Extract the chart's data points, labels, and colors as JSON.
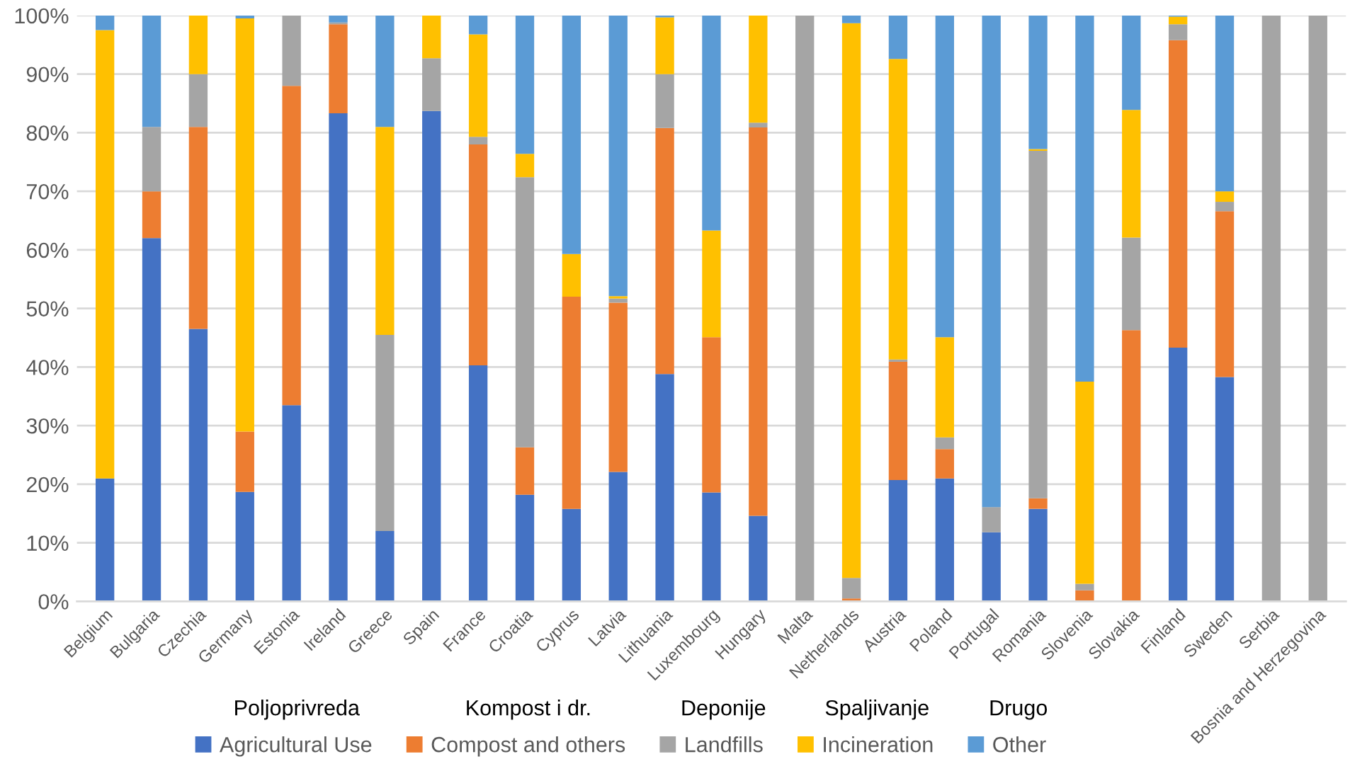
{
  "chart_data": {
    "type": "bar",
    "stacked": true,
    "categories": [
      "Belgium",
      "Bulgaria",
      "Czechia",
      "Germany",
      "Estonia",
      "Ireland",
      "Greece",
      "Spain",
      "France",
      "Croatia",
      "Cyprus",
      "Latvia",
      "Lithuania",
      "Luxembourg",
      "Hungary",
      "Malta",
      "Netherlands",
      "Austria",
      "Poland",
      "Portugal",
      "Romania",
      "Slovenia",
      "Slovakia",
      "Finland",
      "Sweden",
      "Serbia",
      "Bosnia and Herzegovina"
    ],
    "series": [
      {
        "name": "Agricultural Use",
        "color": "#4472c4",
        "values": [
          21,
          62,
          46.5,
          18.7,
          33.5,
          83.3,
          12,
          83.7,
          40.3,
          18.2,
          15.8,
          22.1,
          38.8,
          18.6,
          14.6,
          0,
          0,
          20.7,
          21,
          11.8,
          15.8,
          0,
          0,
          43.3,
          38.3,
          0,
          0
        ]
      },
      {
        "name": "Compost and others",
        "color": "#ed7d31",
        "values": [
          0,
          8,
          34.5,
          10.3,
          54.5,
          15.2,
          0,
          0,
          37.7,
          8.1,
          36.2,
          28.9,
          42,
          26.5,
          66.3,
          0,
          0.5,
          20.2,
          5,
          0,
          1.8,
          1.9,
          46.3,
          52.5,
          28.3,
          0,
          0
        ]
      },
      {
        "name": "Landfills",
        "color": "#a5a5a5",
        "values": [
          0,
          11,
          9,
          0,
          12,
          0.3,
          33.5,
          9,
          1.3,
          46.1,
          0,
          0.7,
          9.2,
          0,
          0.8,
          100,
          3.5,
          0.4,
          2,
          4.3,
          59.3,
          1.1,
          15.8,
          2.7,
          1.6,
          100,
          100
        ]
      },
      {
        "name": "Incineration",
        "color": "#ffc000",
        "values": [
          76.5,
          0,
          10,
          70.5,
          0,
          0,
          35.5,
          7.3,
          17.5,
          4,
          7.3,
          0.4,
          9.7,
          18.2,
          18.3,
          0,
          94.7,
          51.3,
          17.1,
          0,
          0.3,
          34.5,
          21.8,
          1.3,
          1.8,
          0,
          0
        ]
      },
      {
        "name": "Other",
        "color": "#5b9bd5",
        "values": [
          2.5,
          19,
          0,
          0.5,
          0,
          1.2,
          19,
          0,
          3.2,
          23.6,
          40.7,
          47.9,
          0.3,
          36.7,
          0,
          0,
          1.3,
          7.6,
          54.9,
          83.9,
          22.8,
          62.5,
          16.1,
          0.2,
          30,
          0,
          0
        ]
      }
    ],
    "ylim": [
      0,
      100
    ],
    "yticks": [
      {
        "value": 0,
        "label": "0%"
      },
      {
        "value": 10,
        "label": "10%"
      },
      {
        "value": 20,
        "label": "20%"
      },
      {
        "value": 30,
        "label": "30%"
      },
      {
        "value": 40,
        "label": "40%"
      },
      {
        "value": 50,
        "label": "50%"
      },
      {
        "value": 60,
        "label": "60%"
      },
      {
        "value": 70,
        "label": "70%"
      },
      {
        "value": 80,
        "label": "80%"
      },
      {
        "value": 90,
        "label": "90%"
      },
      {
        "value": 100,
        "label": "100%"
      }
    ],
    "grid": "y",
    "legend": "bottom",
    "annotations": [
      "Poljoprivreda",
      "Kompost i dr.",
      "Deponije",
      "Spaljivanje",
      "Drugo"
    ]
  }
}
